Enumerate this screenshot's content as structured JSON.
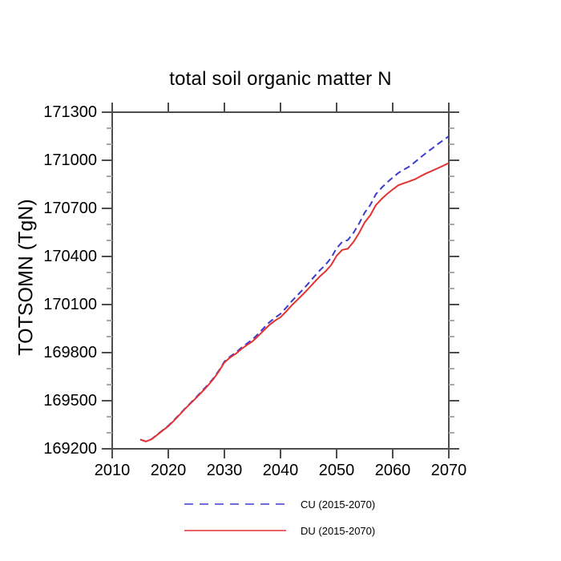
{
  "page": {
    "background": "#ffffff"
  },
  "axes": {
    "color": "#4d4d4d",
    "minor_tick_color": "#a8a8a8",
    "text_color": "#000000"
  },
  "chart_data": {
    "type": "line",
    "title": "total soil organic matter N",
    "xlabel": "",
    "ylabel": "TOTSOMN  (TgN)",
    "xlim": [
      2010,
      2070
    ],
    "ylim": [
      169200,
      171300
    ],
    "xticks": [
      2010,
      2020,
      2030,
      2040,
      2050,
      2060,
      2070
    ],
    "yticks": [
      169200,
      169500,
      169800,
      170100,
      170400,
      170700,
      171000,
      171300
    ],
    "y_major_step": 300,
    "y_minor_step": 100,
    "grid": false,
    "legend_position": "bottom-center",
    "x": [
      2015,
      2016,
      2017,
      2018,
      2019,
      2020,
      2021,
      2022,
      2023,
      2024,
      2025,
      2026,
      2027,
      2028,
      2029,
      2030,
      2031,
      2032,
      2033,
      2034,
      2035,
      2036,
      2037,
      2038,
      2039,
      2040,
      2041,
      2042,
      2043,
      2044,
      2045,
      2046,
      2047,
      2048,
      2049,
      2050,
      2051,
      2052,
      2053,
      2054,
      2055,
      2056,
      2057,
      2058,
      2059,
      2060,
      2061,
      2062,
      2063,
      2064,
      2065,
      2066,
      2067,
      2068,
      2069,
      2070
    ],
    "series": [
      {
        "id": "cu",
        "name": "CU (2015-2070)",
        "color": "#3b3bd0",
        "line_style": "dashed",
        "values": [
          169258,
          169246,
          169260,
          169288,
          169316,
          169344,
          169378,
          169415,
          169452,
          169487,
          169523,
          169560,
          169597,
          169638,
          169687,
          169744,
          169775,
          169799,
          169830,
          169856,
          169882,
          169916,
          169953,
          169989,
          170017,
          170042,
          170080,
          170121,
          170158,
          170194,
          170233,
          170274,
          170313,
          170347,
          170390,
          170451,
          170491,
          170502,
          170547,
          170605,
          170673,
          170721,
          170788,
          170828,
          170862,
          170892,
          170921,
          170942,
          170962,
          170990,
          171019,
          171047,
          171073,
          171100,
          171125,
          171150
        ]
      },
      {
        "id": "du",
        "name": "DU (2015-2070)",
        "color": "#e23333",
        "line_style": "solid",
        "values": [
          169258,
          169246,
          169259,
          169286,
          169314,
          169341,
          169375,
          169412,
          169450,
          169484,
          169519,
          169555,
          169592,
          169633,
          169682,
          169739,
          169769,
          169792,
          169822,
          169847,
          169870,
          169903,
          169938,
          169972,
          169999,
          170021,
          170056,
          170095,
          170129,
          170163,
          170200,
          170238,
          170275,
          170306,
          170345,
          170404,
          170441,
          170448,
          170490,
          170546,
          170612,
          170657,
          170720,
          170758,
          170790,
          170818,
          170844,
          170857,
          170869,
          170882,
          170901,
          170919,
          170934,
          170950,
          170966,
          170983
        ]
      }
    ]
  }
}
